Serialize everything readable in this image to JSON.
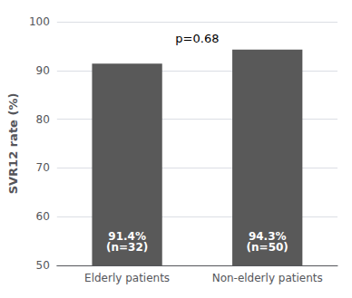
{
  "chart_data": {
    "type": "bar",
    "categories": [
      "Elderly patients",
      "Non-elderly patients"
    ],
    "values": [
      91.4,
      94.3
    ],
    "value_labels": [
      "91.4%\n(n=32)",
      "94.3%\n(n=50)"
    ],
    "data_labels": true,
    "color": "#595959",
    "ylabel": "SVR12 rate (%)",
    "annotation": "p=0.68",
    "ylim": [
      50,
      100
    ],
    "yticks": [
      50,
      60,
      70,
      80,
      90,
      100
    ],
    "grid": true
  }
}
